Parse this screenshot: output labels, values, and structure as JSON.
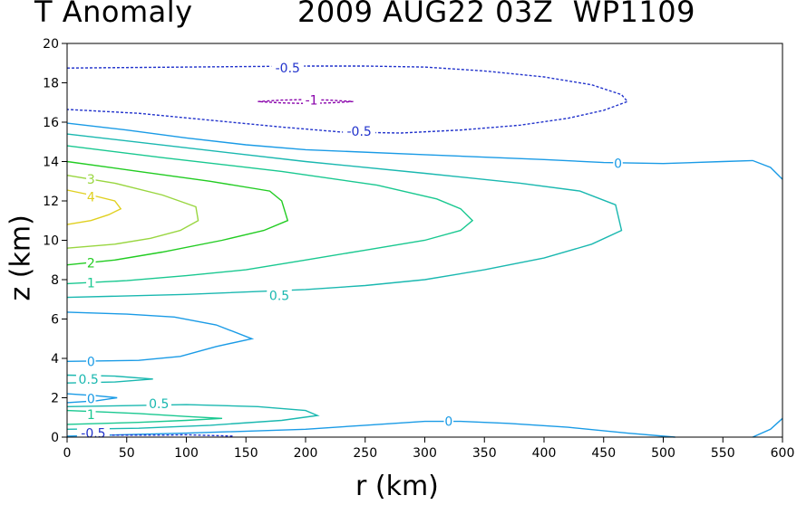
{
  "chart_data": {
    "type": "contour",
    "title_left": "T Anomaly",
    "title_right": "2009 AUG22 03Z  WP1109",
    "xlabel": "r (km)",
    "ylabel": "z (km)",
    "xlim": [
      0,
      600
    ],
    "ylim": [
      0,
      20
    ],
    "xticks": [
      "0",
      "50",
      "100",
      "150",
      "200",
      "250",
      "300",
      "350",
      "400",
      "450",
      "500",
      "550",
      "600"
    ],
    "yticks": [
      "0",
      "2",
      "4",
      "6",
      "8",
      "10",
      "12",
      "14",
      "16",
      "18",
      "20"
    ],
    "colors": {
      "neg": "#2233cc",
      "neg1": "#8800aa",
      "zero": "#1a9be6",
      "c05": "#1ab8b0",
      "c1": "#19c890",
      "c2": "#22cc22",
      "c3": "#99d640",
      "c4": "#e0d020"
    },
    "contours": [
      {
        "name": "contour-neg05-top",
        "level": "-0.5",
        "dashed": true,
        "color_key": "neg",
        "points": [
          [
            0,
            18.75
          ],
          [
            100,
            18.8
          ],
          [
            200,
            18.85
          ],
          [
            250,
            18.85
          ],
          [
            300,
            18.8
          ],
          [
            350,
            18.6
          ],
          [
            400,
            18.3
          ],
          [
            440,
            17.9
          ],
          [
            465,
            17.4
          ],
          [
            470,
            17.05
          ],
          [
            450,
            16.6
          ],
          [
            420,
            16.2
          ],
          [
            380,
            15.85
          ],
          [
            330,
            15.6
          ],
          [
            280,
            15.45
          ],
          [
            230,
            15.5
          ],
          [
            180,
            15.75
          ],
          [
            120,
            16.1
          ],
          [
            60,
            16.45
          ],
          [
            0,
            16.65
          ]
        ]
      },
      {
        "name": "contour-neg1",
        "level": "-1",
        "dashed": true,
        "color_key": "neg1",
        "points": [
          [
            160,
            17.05
          ],
          [
            180,
            17.12
          ],
          [
            200,
            17.15
          ],
          [
            220,
            17.12
          ],
          [
            240,
            17.05
          ],
          [
            220,
            16.98
          ],
          [
            200,
            16.95
          ],
          [
            180,
            16.98
          ],
          [
            160,
            17.05
          ]
        ]
      },
      {
        "name": "contour-zero-upper",
        "level": "0",
        "dashed": false,
        "color_key": "zero",
        "points": [
          [
            0,
            15.95
          ],
          [
            50,
            15.6
          ],
          [
            100,
            15.2
          ],
          [
            150,
            14.85
          ],
          [
            200,
            14.6
          ],
          [
            300,
            14.35
          ],
          [
            400,
            14.1
          ],
          [
            450,
            13.95
          ],
          [
            500,
            13.9
          ],
          [
            550,
            14.0
          ],
          [
            575,
            14.05
          ],
          [
            590,
            13.7
          ],
          [
            600,
            13.1
          ]
        ]
      },
      {
        "name": "contour-05-upper",
        "level": "0.5",
        "dashed": false,
        "color_key": "c05",
        "points": [
          [
            0,
            15.4
          ],
          [
            100,
            14.7
          ],
          [
            200,
            14.0
          ],
          [
            300,
            13.4
          ],
          [
            380,
            12.9
          ],
          [
            430,
            12.5
          ],
          [
            460,
            11.8
          ],
          [
            465,
            10.5
          ],
          [
            440,
            9.8
          ],
          [
            400,
            9.1
          ],
          [
            350,
            8.5
          ],
          [
            300,
            8.0
          ],
          [
            250,
            7.7
          ],
          [
            200,
            7.5
          ],
          [
            100,
            7.25
          ],
          [
            0,
            7.1
          ]
        ]
      },
      {
        "name": "contour-1-upper",
        "level": "1",
        "dashed": false,
        "color_key": "c1",
        "points": [
          [
            0,
            14.8
          ],
          [
            80,
            14.2
          ],
          [
            180,
            13.5
          ],
          [
            260,
            12.8
          ],
          [
            310,
            12.1
          ],
          [
            330,
            11.6
          ],
          [
            340,
            11.0
          ],
          [
            330,
            10.5
          ],
          [
            300,
            10.0
          ],
          [
            250,
            9.5
          ],
          [
            200,
            9.0
          ],
          [
            150,
            8.5
          ],
          [
            100,
            8.2
          ],
          [
            50,
            7.95
          ],
          [
            0,
            7.8
          ]
        ]
      },
      {
        "name": "contour-2",
        "level": "2",
        "dashed": false,
        "color_key": "c2",
        "points": [
          [
            0,
            14.0
          ],
          [
            60,
            13.5
          ],
          [
            120,
            13.0
          ],
          [
            170,
            12.5
          ],
          [
            180,
            12.0
          ],
          [
            185,
            11.0
          ],
          [
            165,
            10.5
          ],
          [
            130,
            10.0
          ],
          [
            80,
            9.4
          ],
          [
            40,
            9.0
          ],
          [
            0,
            8.75
          ]
        ]
      },
      {
        "name": "contour-3",
        "level": "3",
        "dashed": false,
        "color_key": "c3",
        "points": [
          [
            0,
            13.3
          ],
          [
            40,
            12.9
          ],
          [
            80,
            12.3
          ],
          [
            108,
            11.7
          ],
          [
            110,
            11.0
          ],
          [
            95,
            10.5
          ],
          [
            70,
            10.1
          ],
          [
            40,
            9.8
          ],
          [
            0,
            9.6
          ]
        ]
      },
      {
        "name": "contour-4",
        "level": "4",
        "dashed": false,
        "color_key": "c4",
        "points": [
          [
            0,
            12.55
          ],
          [
            20,
            12.3
          ],
          [
            40,
            12.0
          ],
          [
            45,
            11.6
          ],
          [
            35,
            11.3
          ],
          [
            20,
            11.0
          ],
          [
            0,
            10.8
          ]
        ]
      },
      {
        "name": "contour-zero-mid",
        "level": "0",
        "dashed": false,
        "color_key": "zero",
        "points": [
          [
            0,
            6.35
          ],
          [
            50,
            6.25
          ],
          [
            90,
            6.1
          ],
          [
            125,
            5.7
          ],
          [
            155,
            5.0
          ],
          [
            125,
            4.6
          ],
          [
            95,
            4.1
          ],
          [
            60,
            3.9
          ],
          [
            0,
            3.85
          ]
        ]
      },
      {
        "name": "contour-05-lowmid",
        "level": "0.5",
        "dashed": false,
        "color_key": "c05",
        "points": [
          [
            0,
            3.15
          ],
          [
            40,
            3.1
          ],
          [
            72,
            2.95
          ],
          [
            40,
            2.8
          ],
          [
            0,
            2.75
          ]
        ]
      },
      {
        "name": "contour-zero-low",
        "level": "0",
        "dashed": false,
        "color_key": "zero",
        "points": [
          [
            0,
            2.2
          ],
          [
            25,
            2.1
          ],
          [
            42,
            2.0
          ],
          [
            25,
            1.85
          ],
          [
            0,
            1.75
          ]
        ]
      },
      {
        "name": "contour-05-low",
        "level": "0.5",
        "dashed": false,
        "color_key": "c05",
        "points": [
          [
            0,
            1.55
          ],
          [
            100,
            1.65
          ],
          [
            160,
            1.55
          ],
          [
            200,
            1.35
          ],
          [
            210,
            1.1
          ],
          [
            180,
            0.85
          ],
          [
            120,
            0.6
          ],
          [
            60,
            0.45
          ],
          [
            0,
            0.4
          ]
        ]
      },
      {
        "name": "contour-1-low",
        "level": "1",
        "dashed": false,
        "color_key": "c1",
        "points": [
          [
            0,
            1.35
          ],
          [
            60,
            1.2
          ],
          [
            100,
            1.05
          ],
          [
            130,
            0.95
          ],
          [
            100,
            0.85
          ],
          [
            60,
            0.75
          ],
          [
            0,
            0.65
          ]
        ]
      },
      {
        "name": "contour-zero-bottom",
        "level": "0",
        "dashed": false,
        "color_key": "zero",
        "points": [
          [
            0,
            0.05
          ],
          [
            100,
            0.2
          ],
          [
            200,
            0.4
          ],
          [
            250,
            0.6
          ],
          [
            300,
            0.8
          ],
          [
            330,
            0.8
          ],
          [
            370,
            0.7
          ],
          [
            420,
            0.5
          ],
          [
            470,
            0.2
          ],
          [
            510,
            0.0
          ]
        ]
      },
      {
        "name": "contour-zero-corner",
        "level": "0",
        "dashed": false,
        "color_key": "zero",
        "points": [
          [
            575,
            0.0
          ],
          [
            590,
            0.4
          ],
          [
            600,
            0.95
          ]
        ]
      },
      {
        "name": "contour-neg05-bottom",
        "level": "-0.5",
        "dashed": true,
        "color_key": "neg",
        "points": [
          [
            30,
            0.1
          ],
          [
            80,
            0.1
          ],
          [
            100,
            0.12
          ],
          [
            140,
            0.05
          ]
        ]
      }
    ],
    "labels": [
      {
        "text": "-0.5",
        "x": 185,
        "y": 18.75,
        "color_key": "neg"
      },
      {
        "text": "-1",
        "x": 205,
        "y": 17.12,
        "color_key": "neg1"
      },
      {
        "text": "-0.5",
        "x": 245,
        "y": 15.55,
        "color_key": "neg"
      },
      {
        "text": "0",
        "x": 462,
        "y": 13.9,
        "color_key": "zero"
      },
      {
        "text": "3",
        "x": 20,
        "y": 13.1,
        "color_key": "c3"
      },
      {
        "text": "4",
        "x": 20,
        "y": 12.2,
        "color_key": "c4"
      },
      {
        "text": "2",
        "x": 20,
        "y": 8.85,
        "color_key": "c2"
      },
      {
        "text": "1",
        "x": 20,
        "y": 7.85,
        "color_key": "c1"
      },
      {
        "text": "0.5",
        "x": 178,
        "y": 7.2,
        "color_key": "c05"
      },
      {
        "text": "0",
        "x": 20,
        "y": 3.85,
        "color_key": "zero"
      },
      {
        "text": "0.5",
        "x": 18,
        "y": 2.95,
        "color_key": "c05"
      },
      {
        "text": "0",
        "x": 20,
        "y": 1.95,
        "color_key": "zero"
      },
      {
        "text": "0.5",
        "x": 77,
        "y": 1.7,
        "color_key": "c05"
      },
      {
        "text": "1",
        "x": 20,
        "y": 1.15,
        "color_key": "c1"
      },
      {
        "text": "0",
        "x": 320,
        "y": 0.8,
        "color_key": "zero"
      },
      {
        "text": "-0.5",
        "x": 22,
        "y": 0.2,
        "color_key": "neg"
      }
    ]
  }
}
